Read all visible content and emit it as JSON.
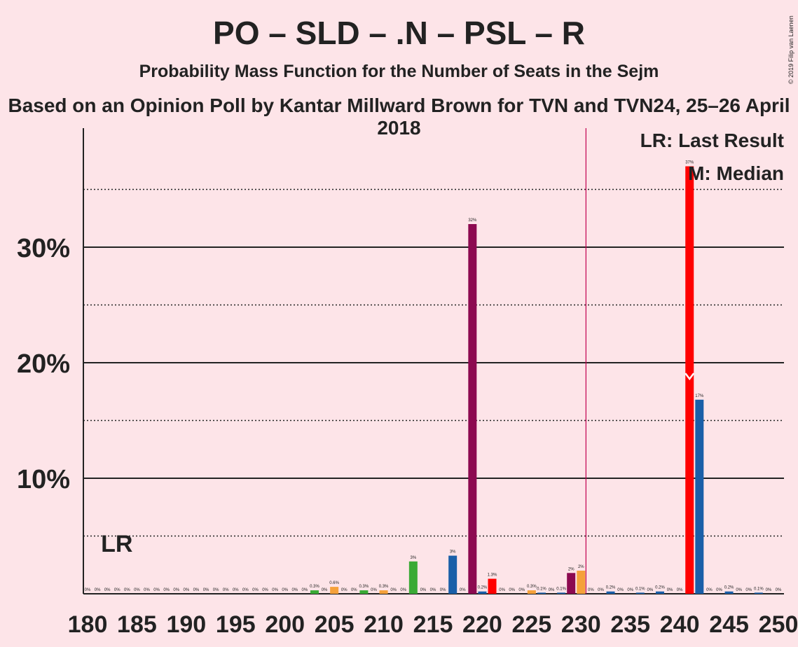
{
  "title": "PO – SLD – .N – PSL – R",
  "subtitle": "Probability Mass Function for the Number of Seats in the Sejm",
  "source": "Based on an Opinion Poll by Kantar Millward Brown for TVN and TVN24, 25–26 April 2018",
  "copyright": "© 2019 Filip van Laenen",
  "legend": {
    "last_result": "LR: Last Result",
    "median": "M: Median"
  },
  "lr_label": "LR",
  "colors": {
    "background": "#fde4e8",
    "PO": "#f5a13a",
    "SLD": "#c1004f",
    "N": "#1a5fa8",
    "PSL": "#3aaa35",
    "R": "#ff0000",
    "dark": "#8c0950",
    "majority_line": "#c1004f"
  },
  "chart_data": {
    "type": "bar",
    "xlabel": "",
    "ylabel": "",
    "xlim": [
      180,
      250
    ],
    "ylim": [
      0,
      40
    ],
    "x_ticks": [
      180,
      185,
      190,
      195,
      200,
      205,
      210,
      215,
      220,
      225,
      230,
      235,
      240,
      245,
      250
    ],
    "y_ticks": [
      {
        "value": 10,
        "label": "10%"
      },
      {
        "value": 20,
        "label": "20%"
      },
      {
        "value": 30,
        "label": "30%"
      }
    ],
    "majority_line": 231,
    "last_result": 182,
    "median": 241,
    "bars": [
      {
        "seats": 180,
        "value": 0,
        "label": "0%",
        "color": "#1a5fa8"
      },
      {
        "seats": 181,
        "value": 0,
        "label": "0%",
        "color": "#1a5fa8"
      },
      {
        "seats": 182,
        "value": 0,
        "label": "0%",
        "color": "#1a5fa8"
      },
      {
        "seats": 183,
        "value": 0,
        "label": "0%",
        "color": "#1a5fa8"
      },
      {
        "seats": 184,
        "value": 0,
        "label": "0%",
        "color": "#1a5fa8"
      },
      {
        "seats": 185,
        "value": 0,
        "label": "0%",
        "color": "#1a5fa8"
      },
      {
        "seats": 186,
        "value": 0,
        "label": "0%",
        "color": "#1a5fa8"
      },
      {
        "seats": 187,
        "value": 0,
        "label": "0%",
        "color": "#1a5fa8"
      },
      {
        "seats": 188,
        "value": 0,
        "label": "0%",
        "color": "#1a5fa8"
      },
      {
        "seats": 189,
        "value": 0,
        "label": "0%",
        "color": "#1a5fa8"
      },
      {
        "seats": 190,
        "value": 0,
        "label": "0%",
        "color": "#1a5fa8"
      },
      {
        "seats": 191,
        "value": 0,
        "label": "0%",
        "color": "#1a5fa8"
      },
      {
        "seats": 192,
        "value": 0,
        "label": "0%",
        "color": "#1a5fa8"
      },
      {
        "seats": 193,
        "value": 0,
        "label": "0%",
        "color": "#1a5fa8"
      },
      {
        "seats": 194,
        "value": 0,
        "label": "0%",
        "color": "#1a5fa8"
      },
      {
        "seats": 195,
        "value": 0,
        "label": "0%",
        "color": "#1a5fa8"
      },
      {
        "seats": 196,
        "value": 0,
        "label": "0%",
        "color": "#1a5fa8"
      },
      {
        "seats": 197,
        "value": 0,
        "label": "0%",
        "color": "#1a5fa8"
      },
      {
        "seats": 198,
        "value": 0,
        "label": "0%",
        "color": "#1a5fa8"
      },
      {
        "seats": 199,
        "value": 0,
        "label": "0%",
        "color": "#1a5fa8"
      },
      {
        "seats": 200,
        "value": 0,
        "label": "0%",
        "color": "#1a5fa8"
      },
      {
        "seats": 201,
        "value": 0,
        "label": "0%",
        "color": "#1a5fa8"
      },
      {
        "seats": 202,
        "value": 0,
        "label": "0%",
        "color": "#1a5fa8"
      },
      {
        "seats": 203,
        "value": 0.3,
        "label": "0.3%",
        "color": "#3aaa35"
      },
      {
        "seats": 204,
        "value": 0,
        "label": "0%",
        "color": "#1a5fa8"
      },
      {
        "seats": 205,
        "value": 0.6,
        "label": "0.6%",
        "color": "#f5a13a"
      },
      {
        "seats": 206,
        "value": 0,
        "label": "0%",
        "color": "#1a5fa8"
      },
      {
        "seats": 207,
        "value": 0,
        "label": "0%",
        "color": "#1a5fa8"
      },
      {
        "seats": 208,
        "value": 0.3,
        "label": "0.3%",
        "color": "#3aaa35"
      },
      {
        "seats": 209,
        "value": 0,
        "label": "0%",
        "color": "#1a5fa8"
      },
      {
        "seats": 210,
        "value": 0.3,
        "label": "0.3%",
        "color": "#f5a13a"
      },
      {
        "seats": 211,
        "value": 0,
        "label": "0%",
        "color": "#1a5fa8"
      },
      {
        "seats": 212,
        "value": 0,
        "label": "0%",
        "color": "#1a5fa8"
      },
      {
        "seats": 213,
        "value": 2.8,
        "label": "3%",
        "color": "#3aaa35"
      },
      {
        "seats": 214,
        "value": 0,
        "label": "0%",
        "color": "#1a5fa8"
      },
      {
        "seats": 215,
        "value": 0,
        "label": "0%",
        "color": "#1a5fa8"
      },
      {
        "seats": 216,
        "value": 0,
        "label": "0%",
        "color": "#1a5fa8"
      },
      {
        "seats": 217,
        "value": 3.3,
        "label": "3%",
        "color": "#1a5fa8"
      },
      {
        "seats": 218,
        "value": 0,
        "label": "0%",
        "color": "#1a5fa8"
      },
      {
        "seats": 219,
        "value": 32,
        "label": "32%",
        "color": "#8c0950"
      },
      {
        "seats": 220,
        "value": 0.2,
        "label": "0.2%",
        "color": "#1a5fa8"
      },
      {
        "seats": 221,
        "value": 1.3,
        "label": "1.3%",
        "color": "#ff0000"
      },
      {
        "seats": 222,
        "value": 0,
        "label": "0%",
        "color": "#1a5fa8"
      },
      {
        "seats": 223,
        "value": 0,
        "label": "0%",
        "color": "#1a5fa8"
      },
      {
        "seats": 224,
        "value": 0,
        "label": "0%",
        "color": "#1a5fa8"
      },
      {
        "seats": 225,
        "value": 0.3,
        "label": "0.3%",
        "color": "#f5a13a"
      },
      {
        "seats": 226,
        "value": 0.1,
        "label": "0.1%",
        "color": "#1a5fa8"
      },
      {
        "seats": 227,
        "value": 0,
        "label": "0%",
        "color": "#1a5fa8"
      },
      {
        "seats": 228,
        "value": 0.1,
        "label": "0.1%",
        "color": "#1a5fa8"
      },
      {
        "seats": 229,
        "value": 1.8,
        "label": "2%",
        "color": "#8c0950"
      },
      {
        "seats": 230,
        "value": 2,
        "label": "2%",
        "color": "#f5a13a"
      },
      {
        "seats": 231,
        "value": 0,
        "label": "0%",
        "color": "#1a5fa8"
      },
      {
        "seats": 232,
        "value": 0,
        "label": "0%",
        "color": "#1a5fa8"
      },
      {
        "seats": 233,
        "value": 0.2,
        "label": "0.2%",
        "color": "#1a5fa8"
      },
      {
        "seats": 234,
        "value": 0,
        "label": "0%",
        "color": "#1a5fa8"
      },
      {
        "seats": 235,
        "value": 0,
        "label": "0%",
        "color": "#1a5fa8"
      },
      {
        "seats": 236,
        "value": 0.1,
        "label": "0.1%",
        "color": "#1a5fa8"
      },
      {
        "seats": 237,
        "value": 0,
        "label": "0%",
        "color": "#1a5fa8"
      },
      {
        "seats": 238,
        "value": 0.2,
        "label": "0.2%",
        "color": "#1a5fa8"
      },
      {
        "seats": 239,
        "value": 0,
        "label": "0%",
        "color": "#1a5fa8"
      },
      {
        "seats": 240,
        "value": 0,
        "label": "0%",
        "color": "#1a5fa8"
      },
      {
        "seats": 241,
        "value": 37,
        "label": "37%",
        "color": "#ff0000"
      },
      {
        "seats": 242,
        "value": 16.8,
        "label": "17%",
        "color": "#1a5fa8"
      },
      {
        "seats": 243,
        "value": 0,
        "label": "0%",
        "color": "#1a5fa8"
      },
      {
        "seats": 244,
        "value": 0,
        "label": "0%",
        "color": "#1a5fa8"
      },
      {
        "seats": 245,
        "value": 0.2,
        "label": "0.2%",
        "color": "#1a5fa8"
      },
      {
        "seats": 246,
        "value": 0,
        "label": "0%",
        "color": "#1a5fa8"
      },
      {
        "seats": 247,
        "value": 0,
        "label": "0%",
        "color": "#1a5fa8"
      },
      {
        "seats": 248,
        "value": 0.1,
        "label": "0.1%",
        "color": "#1a5fa8"
      },
      {
        "seats": 249,
        "value": 0,
        "label": "0%",
        "color": "#1a5fa8"
      },
      {
        "seats": 250,
        "value": 0,
        "label": "0%",
        "color": "#1a5fa8"
      }
    ]
  }
}
